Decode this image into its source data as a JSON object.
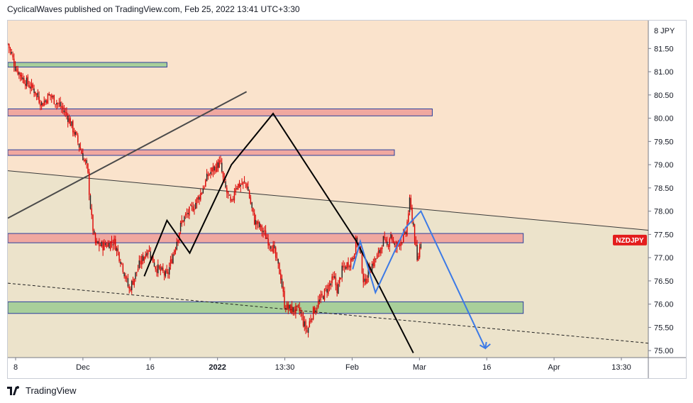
{
  "header": {
    "caption": "CyclicalWaves published on TradingView.com, Feb 25, 2022 13:41 UTC+3:30"
  },
  "footer": {
    "brand": "TradingView"
  },
  "colors": {
    "background_upper": "#fae3cc",
    "background_lower": "#ece3cb",
    "candle": "#dd0000",
    "zone_red": "#f0a8a0",
    "zone_green": "#a8cf9a",
    "zone_border": "#2b3f9c",
    "projection_blue": "#3c7ae6",
    "symbol_badge": "#e31d1d"
  },
  "chart_data": {
    "type": "candlestick",
    "symbol": "NZDJPY",
    "currency": "JPY",
    "axis_currency_label": "8 JPY",
    "x_ticks": [
      "8",
      "Dec",
      "16",
      "2022",
      "13:30",
      "Feb",
      "Mar",
      "16",
      "Apr",
      "13:30"
    ],
    "y_ticks": [
      75.0,
      75.5,
      76.0,
      76.5,
      77.0,
      77.5,
      78.0,
      78.5,
      79.0,
      79.5,
      80.0,
      80.5,
      81.0,
      81.5
    ],
    "y_range": [
      74.85,
      82.1
    ],
    "time_range": [
      "2021-11-08",
      "2022-04-26"
    ],
    "last_price": 77.37,
    "close_path": [
      [
        "2021-11-08",
        81.6
      ],
      [
        "2021-11-10",
        81.1
      ],
      [
        "2021-11-12",
        80.85
      ],
      [
        "2021-11-15",
        80.6
      ],
      [
        "2021-11-17",
        80.3
      ],
      [
        "2021-11-19",
        80.5
      ],
      [
        "2021-11-22",
        80.25
      ],
      [
        "2021-11-24",
        80.0
      ],
      [
        "2021-11-26",
        79.6
      ],
      [
        "2021-11-29",
        78.9
      ],
      [
        "2021-11-30",
        77.9
      ],
      [
        "2021-12-01",
        77.3
      ],
      [
        "2021-12-03",
        77.25
      ],
      [
        "2021-12-06",
        77.35
      ],
      [
        "2021-12-08",
        76.9
      ],
      [
        "2021-12-10",
        76.3
      ],
      [
        "2021-12-13",
        76.9
      ],
      [
        "2021-12-15",
        77.2
      ],
      [
        "2021-12-17",
        76.8
      ],
      [
        "2021-12-20",
        76.6
      ],
      [
        "2021-12-22",
        77.2
      ],
      [
        "2021-12-24",
        77.8
      ],
      [
        "2021-12-27",
        78.1
      ],
      [
        "2021-12-29",
        78.4
      ],
      [
        "2021-12-31",
        78.8
      ],
      [
        "2022-01-03",
        79.05
      ],
      [
        "2022-01-04",
        78.6
      ],
      [
        "2022-01-06",
        78.1
      ],
      [
        "2022-01-07",
        78.55
      ],
      [
        "2022-01-10",
        78.6
      ],
      [
        "2022-01-12",
        77.8
      ],
      [
        "2022-01-14",
        77.6
      ],
      [
        "2022-01-17",
        77.2
      ],
      [
        "2022-01-19",
        76.6
      ],
      [
        "2022-01-20",
        76.0
      ],
      [
        "2022-01-21",
        75.9
      ],
      [
        "2022-01-24",
        75.85
      ],
      [
        "2022-01-25",
        75.6
      ],
      [
        "2022-01-26",
        75.4
      ],
      [
        "2022-01-27",
        75.75
      ],
      [
        "2022-01-28",
        75.9
      ],
      [
        "2022-01-31",
        76.3
      ],
      [
        "2022-02-02",
        76.55
      ],
      [
        "2022-02-03",
        76.3
      ],
      [
        "2022-02-04",
        76.7
      ],
      [
        "2022-02-07",
        77.0
      ],
      [
        "2022-02-08",
        77.4
      ],
      [
        "2022-02-09",
        77.1
      ],
      [
        "2022-02-10",
        76.4
      ],
      [
        "2022-02-11",
        76.7
      ],
      [
        "2022-02-14",
        77.1
      ],
      [
        "2022-02-15",
        77.4
      ],
      [
        "2022-02-16",
        77.2
      ],
      [
        "2022-02-17",
        77.55
      ],
      [
        "2022-02-18",
        77.2
      ],
      [
        "2022-02-21",
        77.5
      ],
      [
        "2022-02-22",
        78.2
      ],
      [
        "2022-02-23",
        77.7
      ],
      [
        "2022-02-24",
        76.9
      ],
      [
        "2022-02-25",
        77.37
      ]
    ],
    "zones": [
      {
        "color": "green",
        "from": "2021-11-08",
        "to": "2021-12-20",
        "low": 81.1,
        "high": 81.2
      },
      {
        "color": "red",
        "from": "2021-11-08",
        "to": "2022-02-28",
        "low": 80.05,
        "high": 80.2
      },
      {
        "color": "red",
        "from": "2021-11-08",
        "to": "2022-02-18",
        "low": 79.2,
        "high": 79.32
      },
      {
        "color": "red",
        "from": "2021-11-08",
        "to": "2022-03-24",
        "low": 77.32,
        "high": 77.52
      },
      {
        "color": "green",
        "from": "2021-11-08",
        "to": "2022-03-24",
        "low": 75.8,
        "high": 76.05
      }
    ],
    "trendlines": [
      {
        "style": "solid-thin",
        "points": [
          [
            "2021-11-08",
            78.87
          ],
          [
            "2022-04-26",
            77.59
          ]
        ]
      },
      {
        "style": "dashed",
        "points": [
          [
            "2021-11-08",
            76.45
          ],
          [
            "2022-04-26",
            75.16
          ]
        ]
      },
      {
        "style": "solid-gray",
        "points": [
          [
            "2021-11-08",
            77.85
          ],
          [
            "2022-01-10",
            80.57
          ]
        ]
      }
    ],
    "wave_path": [
      [
        "2021-12-14",
        76.6
      ],
      [
        "2021-12-20",
        77.8
      ],
      [
        "2021-12-26",
        77.1
      ],
      [
        "2022-01-06",
        79.0
      ],
      [
        "2022-01-17",
        80.1
      ],
      [
        "2022-02-08",
        77.35
      ],
      [
        "2022-02-23",
        74.95
      ]
    ],
    "projection_path": [
      [
        "2022-02-07",
        76.75
      ],
      [
        "2022-02-09",
        77.35
      ],
      [
        "2022-02-13",
        76.25
      ],
      [
        "2022-02-21",
        77.65
      ],
      [
        "2022-02-25",
        78.0
      ],
      [
        "2022-03-14",
        75.05
      ]
    ]
  }
}
